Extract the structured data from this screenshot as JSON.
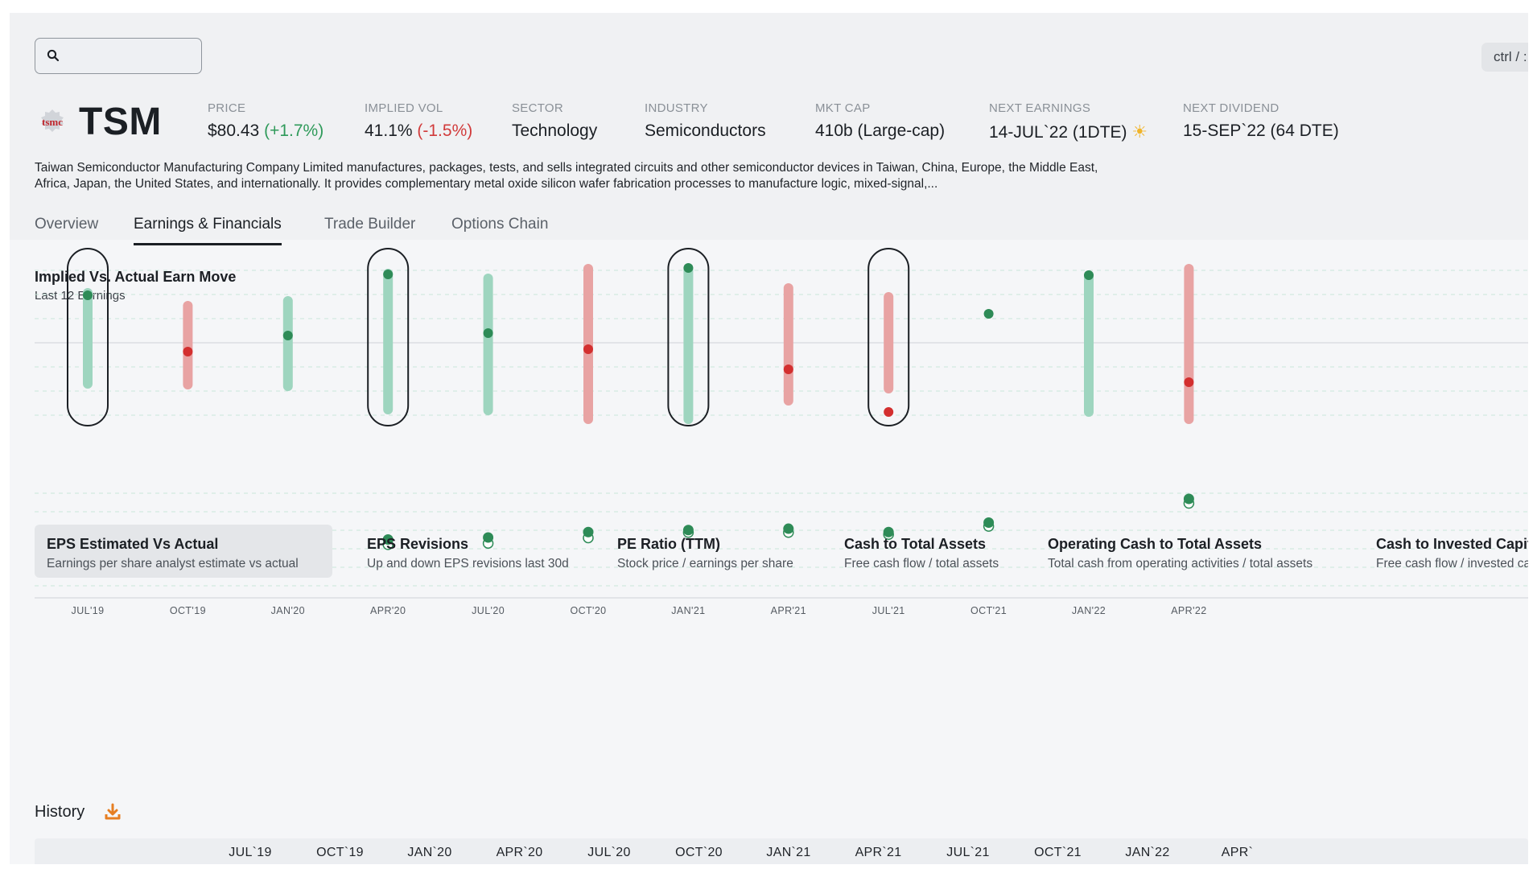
{
  "search": {
    "placeholder": ""
  },
  "shortcut": {
    "label": "ctrl / :"
  },
  "ticker": {
    "symbol": "TSM",
    "logo_text": "tsmc"
  },
  "stats": {
    "price": {
      "label": "PRICE",
      "value": "$80.43",
      "change": "(+1.7%)"
    },
    "iv": {
      "label": "IMPLIED VOL",
      "value": "41.1%",
      "change": "(-1.5%)"
    },
    "sector": {
      "label": "SECTOR",
      "value": "Technology"
    },
    "industry": {
      "label": "INDUSTRY",
      "value": "Semiconductors"
    },
    "mktcap": {
      "label": "MKT CAP",
      "value": "410b (Large-cap)"
    },
    "earnings": {
      "label": "NEXT EARNINGS",
      "value": "14-JUL`22 (1DTE)"
    },
    "dividend": {
      "label": "NEXT DIVIDEND",
      "value": "15-SEP`22 (64 DTE)"
    }
  },
  "description": "Taiwan Semiconductor Manufacturing Company Limited manufactures, packages, tests, and sells integrated circuits and other semiconductor devices in Taiwan, China, Europe, the Middle East, Africa, Japan, the United States, and internationally. It provides complementary metal oxide silicon wafer fabrication processes to manufacture logic, mixed-signal,...",
  "tabs": [
    {
      "label": "Overview",
      "active": false
    },
    {
      "label": "Earnings & Financials",
      "active": true
    },
    {
      "label": "Trade Builder",
      "active": false
    },
    {
      "label": "Options Chain",
      "active": false
    }
  ],
  "earn_chart": {
    "title": "Implied Vs. Actual Earn Move",
    "subtitle": "Last 12 Earnings"
  },
  "metrics": [
    {
      "title": "EPS Estimated Vs Actual",
      "subtitle": "Earnings per share analyst estimate vs actual",
      "active": true
    },
    {
      "title": "EPS Revisions",
      "subtitle": "Up and down EPS revisions last 30d",
      "active": false
    },
    {
      "title": "PE Ratio (TTM)",
      "subtitle": "Stock price / earnings per share",
      "active": false
    },
    {
      "title": "Cash to Total Assets",
      "subtitle": "Free cash flow / total assets",
      "active": false
    },
    {
      "title": "Operating Cash to Total Assets",
      "subtitle": "Total cash from operating activities / total assets",
      "active": false
    },
    {
      "title": "Cash to Invested Capital",
      "subtitle": "Free cash flow / invested capital",
      "active": false
    }
  ],
  "chart_data": [
    {
      "type": "range",
      "categories": [
        "JUL'19",
        "OCT'19",
        "JAN'20",
        "APR'20",
        "JUL'20",
        "OCT'20",
        "JAN'21",
        "APR'21",
        "JUL'21",
        "OCT'21",
        "JAN'22",
        "APR'22"
      ],
      "implied_upper": [
        6.2,
        4.6,
        5.2,
        8.6,
        8.0,
        9.2,
        9.2,
        6.8,
        5.7,
        null,
        8.4,
        9.2
      ],
      "implied_lower": [
        -5.1,
        -5.2,
        -5.4,
        -8.3,
        -8.4,
        -9.5,
        -9.5,
        -7.2,
        -5.7,
        null,
        -8.6,
        -9.5
      ],
      "actual_move": [
        5.9,
        -1.1,
        0.9,
        8.5,
        1.2,
        -0.8,
        9.3,
        -3.3,
        -8.6,
        3.6,
        8.4,
        -4.9
      ],
      "outside_range": [
        true,
        false,
        false,
        true,
        false,
        false,
        true,
        false,
        true,
        false,
        false,
        false
      ],
      "colors": {
        "up": "#2e8b57",
        "down": "#d32f2f",
        "up_range": "#9ed5bf",
        "down_range": "#e8a3a3"
      },
      "grid": true
    },
    {
      "type": "scatter",
      "categories": [
        "JUL'19",
        "OCT'19",
        "JAN'20",
        "APR'20",
        "JUL'20",
        "OCT'20",
        "JAN'21",
        "APR'21",
        "JUL'21",
        "OCT'21",
        "JAN'22",
        "APR'22"
      ],
      "series": [
        {
          "values": [
            0.0,
            0.2,
            0.31,
            0.31,
            0.33,
            0.41,
            0.49,
            0.49,
            0.46,
            0.58,
            null,
            0.92
          ]
        },
        {
          "values": [
            0.0,
            0.2,
            0.33,
            0.35,
            0.38,
            0.46,
            0.49,
            0.51,
            0.46,
            0.6,
            null,
            0.95
          ]
        }
      ],
      "grid": true
    }
  ],
  "history": {
    "title": "History",
    "columns": [
      "JUL`19",
      "OCT`19",
      "JAN`20",
      "APR`20",
      "JUL`20",
      "OCT`20",
      "JAN`21",
      "APR`21",
      "JUL`21",
      "OCT`21",
      "JAN`22",
      "APR`"
    ]
  }
}
